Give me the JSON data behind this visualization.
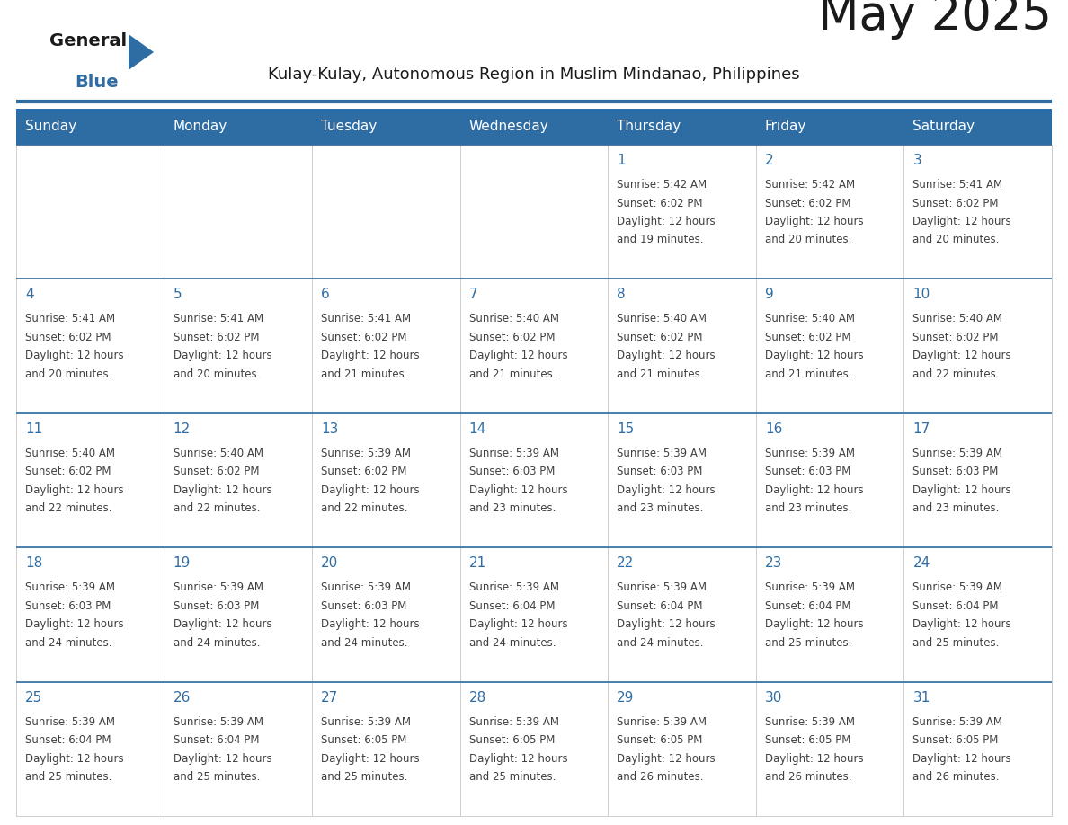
{
  "title": "May 2025",
  "subtitle": "Kulay-Kulay, Autonomous Region in Muslim Mindanao, Philippines",
  "days_of_week": [
    "Sunday",
    "Monday",
    "Tuesday",
    "Wednesday",
    "Thursday",
    "Friday",
    "Saturday"
  ],
  "header_bg_color": "#2E6DA4",
  "header_text_color": "#FFFFFF",
  "day_number_color": "#2E6DA4",
  "info_text_color": "#404040",
  "border_color": "#2E6DA4",
  "title_color": "#1a1a1a",
  "subtitle_color": "#1a1a1a",
  "logo_triangle_color": "#2E6DA4",
  "calendar_data": [
    [
      null,
      null,
      null,
      null,
      {
        "day": 1,
        "sunrise": "5:42 AM",
        "sunset": "6:02 PM",
        "daylight": "12 hours and 19 minutes"
      },
      {
        "day": 2,
        "sunrise": "5:42 AM",
        "sunset": "6:02 PM",
        "daylight": "12 hours and 20 minutes"
      },
      {
        "day": 3,
        "sunrise": "5:41 AM",
        "sunset": "6:02 PM",
        "daylight": "12 hours and 20 minutes"
      }
    ],
    [
      {
        "day": 4,
        "sunrise": "5:41 AM",
        "sunset": "6:02 PM",
        "daylight": "12 hours and 20 minutes"
      },
      {
        "day": 5,
        "sunrise": "5:41 AM",
        "sunset": "6:02 PM",
        "daylight": "12 hours and 20 minutes"
      },
      {
        "day": 6,
        "sunrise": "5:41 AM",
        "sunset": "6:02 PM",
        "daylight": "12 hours and 21 minutes"
      },
      {
        "day": 7,
        "sunrise": "5:40 AM",
        "sunset": "6:02 PM",
        "daylight": "12 hours and 21 minutes"
      },
      {
        "day": 8,
        "sunrise": "5:40 AM",
        "sunset": "6:02 PM",
        "daylight": "12 hours and 21 minutes"
      },
      {
        "day": 9,
        "sunrise": "5:40 AM",
        "sunset": "6:02 PM",
        "daylight": "12 hours and 21 minutes"
      },
      {
        "day": 10,
        "sunrise": "5:40 AM",
        "sunset": "6:02 PM",
        "daylight": "12 hours and 22 minutes"
      }
    ],
    [
      {
        "day": 11,
        "sunrise": "5:40 AM",
        "sunset": "6:02 PM",
        "daylight": "12 hours and 22 minutes"
      },
      {
        "day": 12,
        "sunrise": "5:40 AM",
        "sunset": "6:02 PM",
        "daylight": "12 hours and 22 minutes"
      },
      {
        "day": 13,
        "sunrise": "5:39 AM",
        "sunset": "6:02 PM",
        "daylight": "12 hours and 22 minutes"
      },
      {
        "day": 14,
        "sunrise": "5:39 AM",
        "sunset": "6:03 PM",
        "daylight": "12 hours and 23 minutes"
      },
      {
        "day": 15,
        "sunrise": "5:39 AM",
        "sunset": "6:03 PM",
        "daylight": "12 hours and 23 minutes"
      },
      {
        "day": 16,
        "sunrise": "5:39 AM",
        "sunset": "6:03 PM",
        "daylight": "12 hours and 23 minutes"
      },
      {
        "day": 17,
        "sunrise": "5:39 AM",
        "sunset": "6:03 PM",
        "daylight": "12 hours and 23 minutes"
      }
    ],
    [
      {
        "day": 18,
        "sunrise": "5:39 AM",
        "sunset": "6:03 PM",
        "daylight": "12 hours and 24 minutes"
      },
      {
        "day": 19,
        "sunrise": "5:39 AM",
        "sunset": "6:03 PM",
        "daylight": "12 hours and 24 minutes"
      },
      {
        "day": 20,
        "sunrise": "5:39 AM",
        "sunset": "6:03 PM",
        "daylight": "12 hours and 24 minutes"
      },
      {
        "day": 21,
        "sunrise": "5:39 AM",
        "sunset": "6:04 PM",
        "daylight": "12 hours and 24 minutes"
      },
      {
        "day": 22,
        "sunrise": "5:39 AM",
        "sunset": "6:04 PM",
        "daylight": "12 hours and 24 minutes"
      },
      {
        "day": 23,
        "sunrise": "5:39 AM",
        "sunset": "6:04 PM",
        "daylight": "12 hours and 25 minutes"
      },
      {
        "day": 24,
        "sunrise": "5:39 AM",
        "sunset": "6:04 PM",
        "daylight": "12 hours and 25 minutes"
      }
    ],
    [
      {
        "day": 25,
        "sunrise": "5:39 AM",
        "sunset": "6:04 PM",
        "daylight": "12 hours and 25 minutes"
      },
      {
        "day": 26,
        "sunrise": "5:39 AM",
        "sunset": "6:04 PM",
        "daylight": "12 hours and 25 minutes"
      },
      {
        "day": 27,
        "sunrise": "5:39 AM",
        "sunset": "6:05 PM",
        "daylight": "12 hours and 25 minutes"
      },
      {
        "day": 28,
        "sunrise": "5:39 AM",
        "sunset": "6:05 PM",
        "daylight": "12 hours and 25 minutes"
      },
      {
        "day": 29,
        "sunrise": "5:39 AM",
        "sunset": "6:05 PM",
        "daylight": "12 hours and 26 minutes"
      },
      {
        "day": 30,
        "sunrise": "5:39 AM",
        "sunset": "6:05 PM",
        "daylight": "12 hours and 26 minutes"
      },
      {
        "day": 31,
        "sunrise": "5:39 AM",
        "sunset": "6:05 PM",
        "daylight": "12 hours and 26 minutes"
      }
    ]
  ]
}
